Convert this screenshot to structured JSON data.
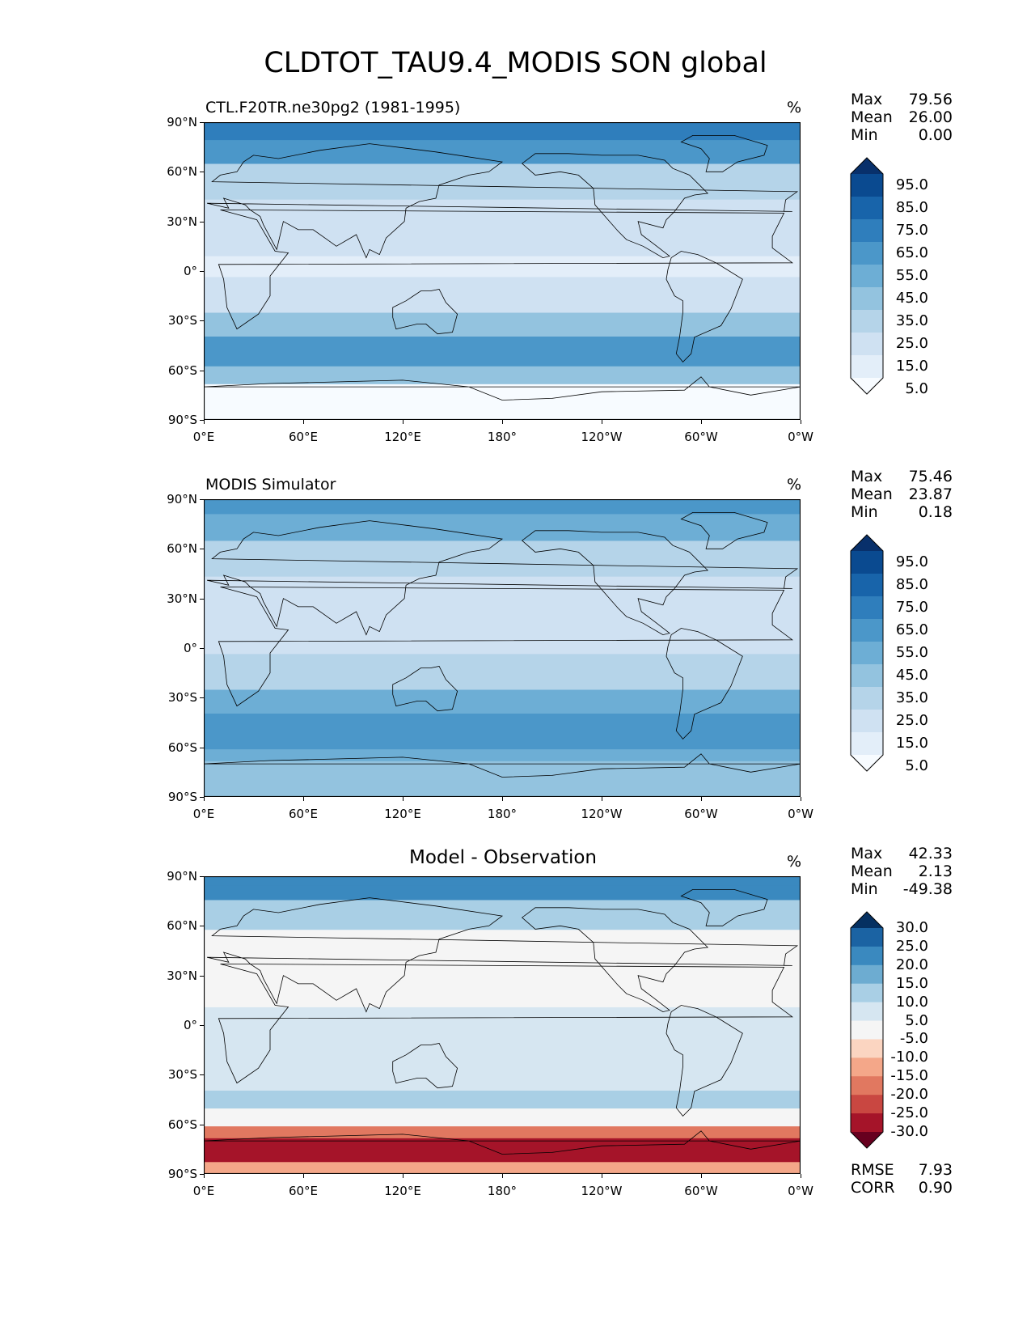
{
  "title": "CLDTOT_TAU9.4_MODIS SON global",
  "colors": {
    "blues": [
      "#f7fbff",
      "#e3eef9",
      "#cfe1f2",
      "#b5d4e9",
      "#93c3df",
      "#6daed5",
      "#4b97c9",
      "#2f7ebc",
      "#1864aa",
      "#0a4a90",
      "#08306b"
    ],
    "diverging": [
      "#67001f",
      "#a51429",
      "#c94741",
      "#e17860",
      "#f4a789",
      "#fbd5c1",
      "#f5f5f5",
      "#d6e6f1",
      "#a9cfe5",
      "#6dacd1",
      "#3a89bf",
      "#1b63a3",
      "#053061"
    ],
    "land_outline": "#000000"
  },
  "chart_data": [
    {
      "type": "heatmap",
      "title": "CTL.F20TR.ne30pg2 (1981-1995)",
      "units": "%",
      "stats": {
        "max": "79.56",
        "mean": "26.00",
        "min": "0.00"
      },
      "xticks": [
        "0°E",
        "60°E",
        "120°E",
        "180°",
        "120°W",
        "60°W",
        "0°W"
      ],
      "yticks": [
        "90°N",
        "60°N",
        "30°N",
        "0°",
        "30°S",
        "60°S",
        "90°S"
      ],
      "colorbar": {
        "levels": [
          "95.0",
          "85.0",
          "75.0",
          "65.0",
          "55.0",
          "45.0",
          "35.0",
          "25.0",
          "15.0",
          "5.0"
        ],
        "extend": "both",
        "palette": "blues"
      }
    },
    {
      "type": "heatmap",
      "title": "MODIS Simulator",
      "units": "%",
      "stats": {
        "max": "75.46",
        "mean": "23.87",
        "min": "0.18"
      },
      "xticks": [
        "0°E",
        "60°E",
        "120°E",
        "180°",
        "120°W",
        "60°W",
        "0°W"
      ],
      "yticks": [
        "90°N",
        "60°N",
        "30°N",
        "0°",
        "30°S",
        "60°S",
        "90°S"
      ],
      "colorbar": {
        "levels": [
          "95.0",
          "85.0",
          "75.0",
          "65.0",
          "55.0",
          "45.0",
          "35.0",
          "25.0",
          "15.0",
          "5.0"
        ],
        "extend": "both",
        "palette": "blues"
      }
    },
    {
      "type": "heatmap",
      "title": "Model - Observation",
      "units": "%",
      "stats": {
        "max": "42.33",
        "mean": "2.13",
        "min": "-49.38"
      },
      "xticks": [
        "0°E",
        "60°E",
        "120°E",
        "180°",
        "120°W",
        "60°W",
        "0°W"
      ],
      "yticks": [
        "90°N",
        "60°N",
        "30°N",
        "0°",
        "30°S",
        "60°S",
        "90°S"
      ],
      "colorbar": {
        "levels": [
          "30.0",
          "25.0",
          "20.0",
          "15.0",
          "10.0",
          "5.0",
          "-5.0",
          "-10.0",
          "-15.0",
          "-20.0",
          "-25.0",
          "-30.0"
        ],
        "extend": "both",
        "palette": "diverging"
      },
      "metrics": {
        "rmse_label": "RMSE",
        "rmse": "7.93",
        "corr_label": "CORR",
        "corr": "0.90"
      }
    }
  ]
}
